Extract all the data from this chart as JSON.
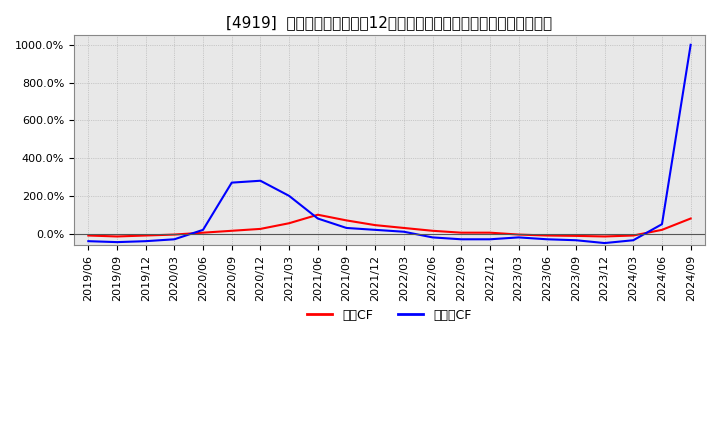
{
  "title": "[4919]  キャッシュフローの12か月移動合計の対前年同期増減率の推移",
  "legend_labels": [
    "営業CF",
    "フリーCF"
  ],
  "line_colors": [
    "#ff0000",
    "#0000ff"
  ],
  "ylim": [
    -60,
    1050
  ],
  "yticks": [
    0,
    200,
    400,
    600,
    800,
    1000
  ],
  "ytick_labels": [
    "0.0%",
    "200.0%",
    "400.0%",
    "600.0%",
    "800.0%",
    "1000.0%"
  ],
  "x_labels": [
    "2019/06",
    "2019/09",
    "2019/12",
    "2020/03",
    "2020/06",
    "2020/09",
    "2020/12",
    "2021/03",
    "2021/06",
    "2021/09",
    "2021/12",
    "2022/03",
    "2022/06",
    "2022/09",
    "2022/12",
    "2023/03",
    "2023/06",
    "2023/09",
    "2023/12",
    "2024/03",
    "2024/06",
    "2024/09"
  ],
  "operating_cf": [
    -10,
    -15,
    -10,
    -5,
    5,
    15,
    25,
    55,
    100,
    70,
    45,
    30,
    15,
    5,
    5,
    -5,
    -10,
    -12,
    -15,
    -10,
    20,
    80
  ],
  "free_cf": [
    -40,
    -45,
    -40,
    -30,
    20,
    270,
    280,
    200,
    80,
    30,
    20,
    10,
    -20,
    -30,
    -30,
    -20,
    -30,
    -35,
    -50,
    -35,
    50,
    1000
  ],
  "background_color": "#ffffff",
  "plot_bg_color": "#e8e8e8",
  "grid_color": "#aaaaaa",
  "title_fontsize": 11,
  "tick_fontsize": 8,
  "legend_fontsize": 9
}
